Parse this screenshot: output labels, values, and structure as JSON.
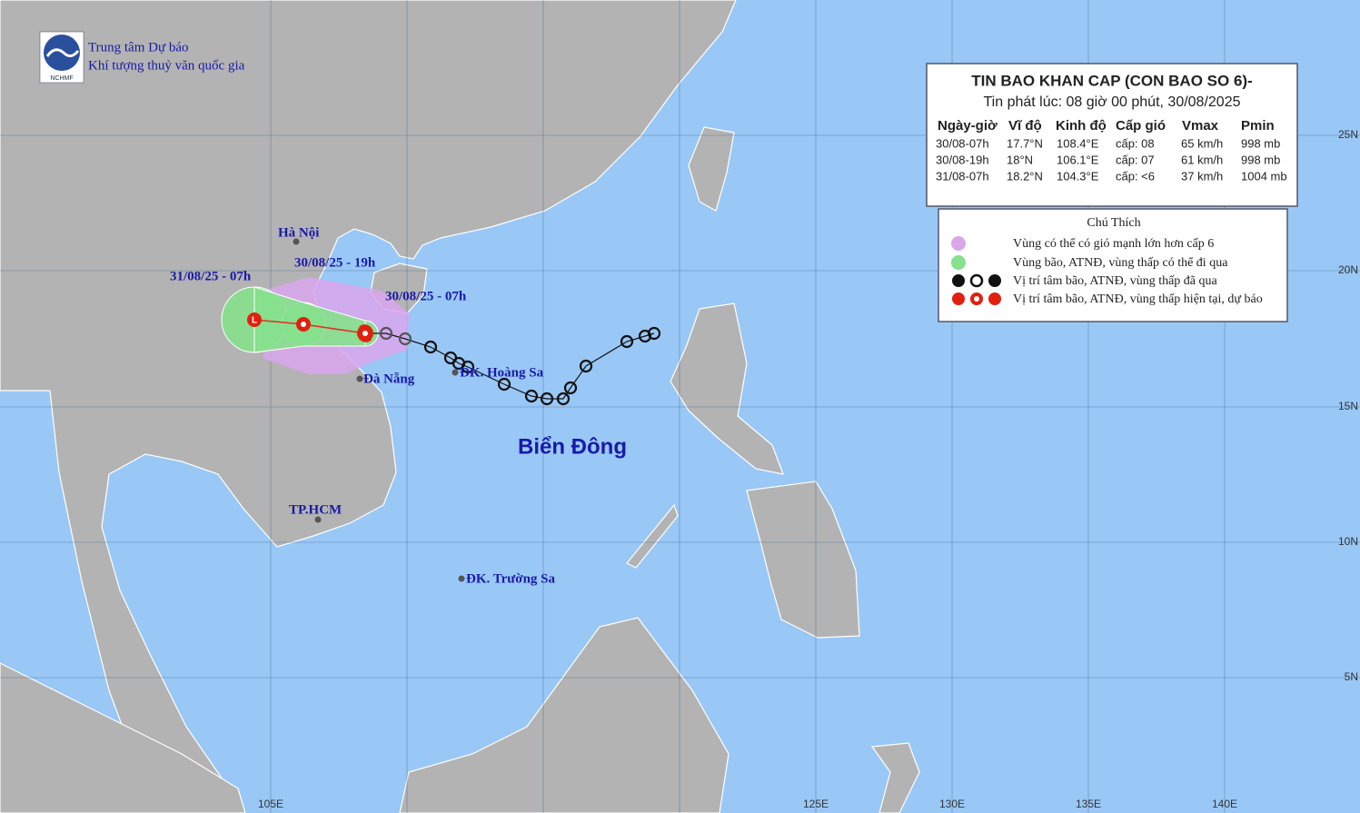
{
  "header": {
    "org_line1": "Trung tâm Dự báo",
    "org_line2": "Khí tượng thuỷ văn quốc gia",
    "logo_text": "NCHMF"
  },
  "bulletin": {
    "title": "TIN BAO KHAN CAP (CON BAO SO 6)-",
    "subtitle": "Tin phát lúc: 08 giờ 00 phút, 30/08/2025",
    "columns": [
      "Ngày-giờ",
      "Vĩ độ",
      "Kinh độ",
      "Cấp gió",
      "Vmax",
      "Pmin"
    ],
    "rows": [
      [
        "30/08-07h",
        "17.7°N",
        "108.4°E",
        "cấp: 08",
        "65 km/h",
        "998 mb"
      ],
      [
        "30/08-19h",
        "18°N",
        "106.1°E",
        "cấp: 07",
        "61 km/h",
        "998 mb"
      ],
      [
        "31/08-07h",
        "18.2°N",
        "104.3°E",
        "cấp: <6",
        "37 km/h",
        "1004 mb"
      ]
    ]
  },
  "legend": {
    "title": "Chú Thích",
    "items": [
      "Vùng có thể có gió mạnh lớn hơn cấp 6",
      "Vùng bão, ATNĐ, vùng thấp có thể đi qua",
      "Vị trí tâm bão, ATNĐ, vùng thấp đã qua",
      "Vị trí tâm bão, ATNĐ, vùng thấp hiện tại, dự báo"
    ]
  },
  "map_labels": {
    "places": [
      "Hà Nội",
      "Đà Nẵng",
      "TP.HCM",
      "ĐK. Hoàng Sa",
      "ĐK. Trường Sa"
    ],
    "sea": "Biển Đông",
    "times": [
      "31/08/25 - 07h",
      "30/08/25 - 19h",
      "30/08/25 - 07h"
    ]
  },
  "axes": {
    "lon": [
      "105E",
      "125E",
      "130E",
      "135E",
      "140E"
    ],
    "lat": [
      "25N",
      "20N",
      "15N",
      "10N",
      "5N"
    ]
  }
}
